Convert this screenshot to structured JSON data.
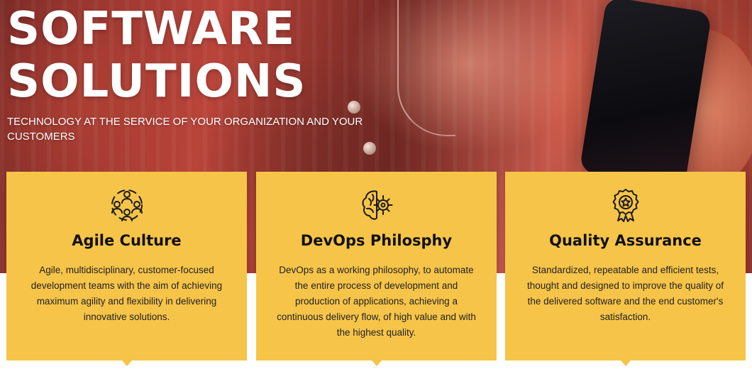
{
  "hero": {
    "title_line1": "SOFTWARE",
    "title_line2": "SOLUTIONS",
    "subtitle": "TECHNOLOGY AT THE SERVICE OF YOUR ORGANIZATION AND YOUR CUSTOMERS"
  },
  "colors": {
    "card_background": "#f6c449",
    "title_text": "#ffffff",
    "card_heading": "#111111"
  },
  "cards": [
    {
      "icon": "team-icon",
      "title": "Agile Culture",
      "text": "Agile, multidisciplinary, customer-focused development teams with the aim of achieving maximum agility and flexibility in delivering innovative solutions."
    },
    {
      "icon": "brain-gear-icon",
      "title": "DevOps Philosphy",
      "text": "DevOps as a working philosophy, to automate the entire process of development and production of applications, achieving a continuous delivery flow, of high value and with the highest quality."
    },
    {
      "icon": "quality-badge-icon",
      "title": "Quality Assurance",
      "text": "Standardized, repeatable and efficient tests, thought and designed to improve the quality of the delivered software and the end customer's satisfaction."
    }
  ]
}
